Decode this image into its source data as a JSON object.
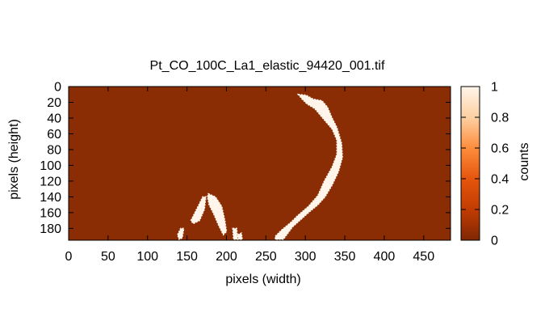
{
  "chart_data": {
    "type": "heatmap",
    "title": "Pt_CO_100C_La1_elastic_94420_001.tif",
    "xlabel": "pixels (width)",
    "ylabel": "pixels (height)",
    "xlim": [
      0,
      484
    ],
    "ylim": [
      0,
      195
    ],
    "y_reversed": true,
    "x_ticks": [
      0,
      50,
      100,
      150,
      200,
      250,
      300,
      350,
      400,
      450
    ],
    "y_ticks": [
      0,
      20,
      40,
      60,
      80,
      100,
      120,
      140,
      160,
      180
    ],
    "colorbar": {
      "label": "counts",
      "range": [
        0,
        1
      ],
      "ticks": [
        0,
        0.2,
        0.4,
        0.6,
        0.8,
        1
      ],
      "tick_labels": [
        "0",
        "0.2",
        "0.4",
        "0.6",
        "0.8",
        "1"
      ],
      "low_color": "#8b2d04",
      "mid_color": "#e6550d",
      "high_color": "#fff5eb"
    },
    "background_value": 0,
    "bright_regions": [
      {
        "name": "upper-arc",
        "value": 1,
        "points": [
          [
            291,
            10
          ],
          [
            301,
            11
          ],
          [
            310,
            16
          ],
          [
            321,
            18
          ],
          [
            328,
            26
          ],
          [
            334,
            40
          ],
          [
            340,
            52
          ],
          [
            346,
            72
          ],
          [
            347,
            90
          ],
          [
            342,
            108
          ],
          [
            334,
            125
          ],
          [
            325,
            140
          ],
          [
            316,
            150
          ],
          [
            304,
            160
          ],
          [
            293,
            170
          ],
          [
            284,
            178
          ],
          [
            278,
            186
          ],
          [
            272,
            194
          ],
          [
            262,
            194
          ],
          [
            262,
            190
          ],
          [
            270,
            182
          ],
          [
            282,
            172
          ],
          [
            290,
            164
          ],
          [
            304,
            152
          ],
          [
            316,
            138
          ],
          [
            324,
            120
          ],
          [
            334,
            102
          ],
          [
            340,
            86
          ],
          [
            340,
            68
          ],
          [
            334,
            54
          ],
          [
            322,
            40
          ],
          [
            312,
            28
          ],
          [
            302,
            22
          ],
          [
            296,
            16
          ]
        ]
      },
      {
        "name": "left-blob-a",
        "value": 1,
        "points": [
          [
            155,
            170
          ],
          [
            164,
            152
          ],
          [
            170,
            140
          ],
          [
            174,
            140
          ],
          [
            172,
            156
          ],
          [
            166,
            170
          ],
          [
            158,
            174
          ]
        ]
      },
      {
        "name": "left-blob-b",
        "value": 1,
        "points": [
          [
            177,
            136
          ],
          [
            186,
            140
          ],
          [
            194,
            152
          ],
          [
            198,
            170
          ],
          [
            200,
            184
          ],
          [
            196,
            188
          ],
          [
            190,
            176
          ],
          [
            184,
            162
          ],
          [
            178,
            150
          ],
          [
            176,
            140
          ]
        ]
      },
      {
        "name": "small-dot-a",
        "value": 1,
        "points": [
          [
            138,
            188
          ],
          [
            142,
            180
          ],
          [
            146,
            180
          ],
          [
            144,
            192
          ],
          [
            140,
            194
          ]
        ]
      },
      {
        "name": "small-dot-b",
        "value": 1,
        "points": [
          [
            208,
            180
          ],
          [
            213,
            180
          ],
          [
            214,
            194
          ],
          [
            209,
            194
          ]
        ]
      },
      {
        "name": "small-dot-c",
        "value": 1,
        "points": [
          [
            214,
            188
          ],
          [
            219,
            186
          ],
          [
            220,
            194
          ],
          [
            215,
            194
          ]
        ]
      }
    ]
  }
}
